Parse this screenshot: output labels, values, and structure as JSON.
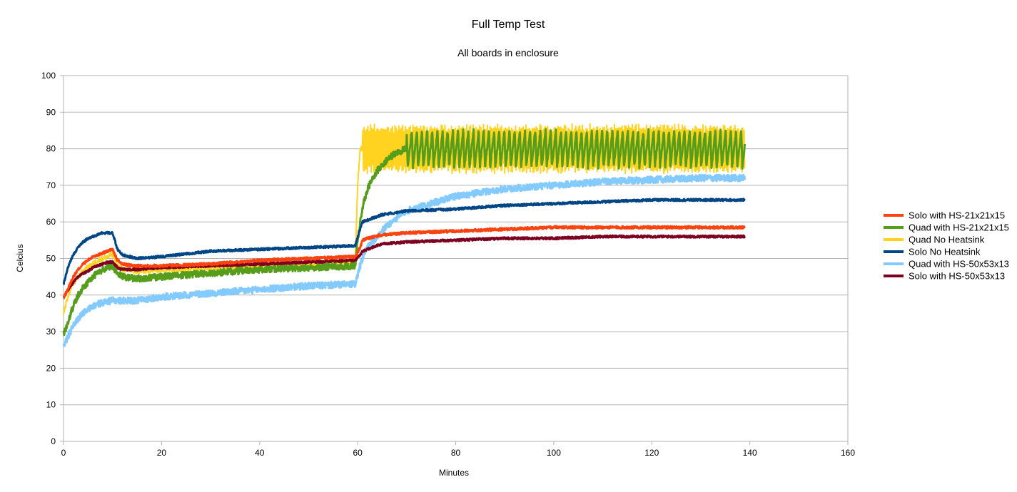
{
  "chart_data": {
    "type": "line",
    "title": "Full Temp Test",
    "subtitle": "All boards in enclosure",
    "xlabel": "Minutes",
    "ylabel": "Celcius",
    "xlim": [
      0,
      160
    ],
    "ylim": [
      0,
      100
    ],
    "xticks": [
      0,
      20,
      40,
      60,
      80,
      100,
      120,
      140,
      160
    ],
    "yticks": [
      0,
      10,
      20,
      30,
      40,
      50,
      60,
      70,
      80,
      90,
      100
    ],
    "grid": "horizontal",
    "legend_position": "right",
    "series": [
      {
        "name": "Solo with HS-21x21x15",
        "color": "#ff420e",
        "x": [
          0,
          1,
          2,
          3,
          4,
          5,
          6,
          7,
          8,
          9,
          10,
          11,
          12,
          14,
          20,
          30,
          40,
          50,
          59.5,
          60.5,
          61,
          62,
          65,
          70,
          80,
          90,
          100,
          110,
          120,
          130,
          139
        ],
        "y": [
          39,
          42,
          45,
          47,
          48.5,
          49.5,
          50.5,
          51,
          51.5,
          52,
          52.5,
          49.5,
          48.5,
          48,
          48,
          48.5,
          49.5,
          50,
          50.5,
          53,
          55,
          55.5,
          56.5,
          57,
          57.5,
          58,
          58.5,
          58.5,
          58.5,
          58.5,
          58.5
        ]
      },
      {
        "name": "Quad with HS-21x21x15",
        "color": "#579d1c",
        "x": [
          0,
          1,
          2,
          3,
          4,
          5,
          6,
          7,
          8,
          9,
          10,
          11,
          12,
          15,
          20,
          30,
          40,
          50,
          59.5,
          60,
          61,
          62,
          64,
          66,
          68,
          70,
          75,
          80,
          90,
          100,
          110,
          120,
          130,
          139
        ],
        "y": [
          29,
          33,
          37,
          40,
          42,
          43.5,
          45,
          46,
          47,
          47.5,
          48,
          46,
          45,
          44.5,
          45,
          46,
          47,
          47.5,
          48,
          55,
          64,
          69,
          74,
          77,
          79,
          80,
          80,
          79.5,
          79.5,
          79.5,
          79.5,
          79.5,
          79.5,
          79.5
        ],
        "oscillation": {
          "from": 70,
          "to": 139,
          "low": 75,
          "high": 85
        }
      },
      {
        "name": "Quad No Heatsink",
        "color": "#ffd320",
        "x": [
          0,
          1,
          2,
          3,
          4,
          5,
          6,
          7,
          8,
          9,
          10,
          11,
          12,
          15,
          20,
          30,
          40,
          50,
          59.5,
          60,
          60.5,
          61,
          139
        ],
        "y": [
          35,
          40,
          43,
          45,
          46.5,
          47.5,
          48.5,
          49.5,
          50,
          50.5,
          51,
          48,
          47,
          46.5,
          47,
          47.5,
          48,
          48.5,
          49,
          70,
          80,
          80,
          80
        ],
        "oscillation": {
          "from": 61,
          "to": 139,
          "low": 74,
          "high": 86
        }
      },
      {
        "name": "Solo No Heatsink",
        "color": "#004586",
        "x": [
          0,
          1,
          2,
          3,
          4,
          5,
          6,
          7,
          8,
          9,
          10,
          11,
          12,
          15,
          20,
          30,
          40,
          50,
          59.5,
          60.5,
          61,
          63,
          65,
          70,
          80,
          90,
          100,
          110,
          120,
          130,
          139
        ],
        "y": [
          43,
          48,
          51,
          53,
          54.5,
          55.5,
          56,
          56.5,
          57,
          57,
          57,
          52.5,
          51,
          50,
          50.5,
          52,
          52.5,
          53,
          53.5,
          58,
          60,
          61,
          62,
          63,
          63.5,
          64.5,
          65,
          65.5,
          66,
          66,
          66
        ]
      },
      {
        "name": "Quad with HS-50x53x13",
        "color": "#83caff",
        "x": [
          0,
          1,
          2,
          3,
          4,
          5,
          6,
          7,
          8,
          10,
          15,
          20,
          30,
          40,
          50,
          59.5,
          60.5,
          61,
          62,
          64,
          66,
          70,
          75,
          80,
          90,
          100,
          110,
          120,
          130,
          139
        ],
        "y": [
          26,
          29,
          31.5,
          33.5,
          35,
          36,
          37,
          37.5,
          38,
          38.5,
          38.5,
          39.5,
          40.5,
          41.5,
          42.5,
          43,
          48,
          50,
          53,
          56,
          59,
          63,
          65,
          67,
          69,
          70,
          71,
          71.5,
          72,
          72
        ]
      },
      {
        "name": "Solo with HS-50x53x13",
        "color": "#7e0021",
        "x": [
          0,
          1,
          2,
          3,
          4,
          5,
          6,
          7,
          8,
          9,
          10,
          11,
          12,
          15,
          20,
          30,
          40,
          50,
          59.5,
          60.5,
          61,
          63,
          65,
          70,
          80,
          90,
          100,
          110,
          120,
          130,
          139
        ],
        "y": [
          39.5,
          41.5,
          43.5,
          45,
          46,
          46.5,
          47.5,
          48,
          48.5,
          49,
          49,
          47.5,
          47,
          47,
          47.5,
          48,
          48.5,
          49,
          49.5,
          51,
          52,
          53,
          54,
          54.5,
          55,
          55.5,
          55.5,
          56,
          56,
          56,
          56
        ]
      }
    ]
  }
}
